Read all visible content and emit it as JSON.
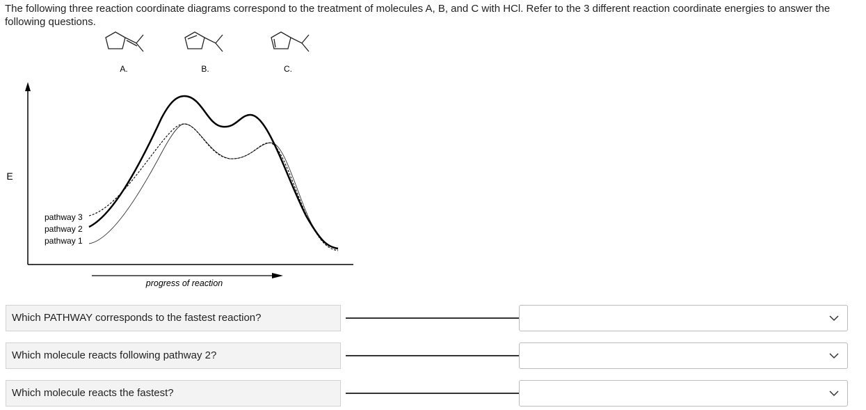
{
  "intro": "The following three reaction coordinate diagrams correspond to the treatment of molecules A, B, and C with HCl. Refer to the 3 different reaction coordinate energies to answer the following questions.",
  "molecules": [
    {
      "label": "A."
    },
    {
      "label": "B."
    },
    {
      "label": "C."
    }
  ],
  "diagram": {
    "y_axis_label": "E",
    "x_axis_label": "progress of reaction",
    "pathways": [
      "pathway 3",
      "pathway 2",
      "pathway 1"
    ]
  },
  "questions": [
    {
      "text": "Which PATHWAY corresponds to the fastest reaction?"
    },
    {
      "text": "Which molecule reacts following pathway 2?"
    },
    {
      "text": "Which molecule reacts the fastest?"
    }
  ]
}
